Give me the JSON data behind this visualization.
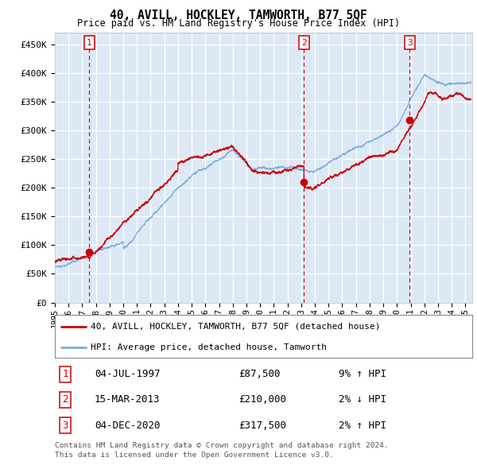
{
  "title": "40, AVILL, HOCKLEY, TAMWORTH, B77 5QF",
  "subtitle": "Price paid vs. HM Land Registry's House Price Index (HPI)",
  "plot_bg_color": "#dce9f5",
  "red_line_color": "#cc0000",
  "blue_line_color": "#7aaadd",
  "sale1": {
    "date": 1997.51,
    "price": 87500,
    "label": "1",
    "note": "9% ↑ HPI",
    "datestr": "04-JUL-1997"
  },
  "sale2": {
    "date": 2013.2,
    "price": 210000,
    "label": "2",
    "note": "2% ↓ HPI",
    "datestr": "15-MAR-2013"
  },
  "sale3": {
    "date": 2020.92,
    "price": 317500,
    "label": "3",
    "note": "2% ↑ HPI",
    "datestr": "04-DEC-2020"
  },
  "ylim": [
    0,
    470000
  ],
  "xlim": [
    1995.0,
    2025.5
  ],
  "yticks": [
    0,
    50000,
    100000,
    150000,
    200000,
    250000,
    300000,
    350000,
    400000,
    450000
  ],
  "ytick_labels": [
    "£0",
    "£50K",
    "£100K",
    "£150K",
    "£200K",
    "£250K",
    "£300K",
    "£350K",
    "£400K",
    "£450K"
  ],
  "legend_line1": "40, AVILL, HOCKLEY, TAMWORTH, B77 5QF (detached house)",
  "legend_line2": "HPI: Average price, detached house, Tamworth",
  "footer1": "Contains HM Land Registry data © Crown copyright and database right 2024.",
  "footer2": "This data is licensed under the Open Government Licence v3.0.",
  "sale_prices": {
    "1": "£87,500",
    "2": "£210,000",
    "3": "£317,500"
  }
}
